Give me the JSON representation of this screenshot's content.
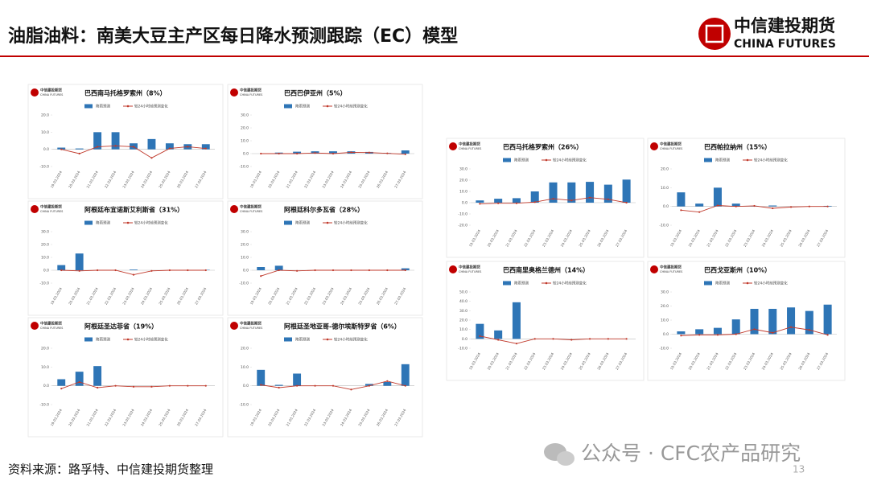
{
  "header": {
    "title": "油脂油料：南美大豆主产区每日降水预测跟踪（EC）模型",
    "logo_cn": "中信建投期货",
    "logo_en": "CHINA FUTURES"
  },
  "footer": {
    "source": "资料来源：路孚特、中信建投期货整理",
    "page": "13"
  },
  "watermark": "公众号 · CFC农产品研究",
  "chart_data": [
    {
      "type": "bar",
      "title": "巴西南马托格罗索州（8%）",
      "categories": [
        "19.03.2024",
        "20.03.2024",
        "21.03.2024",
        "22.03.2024",
        "23.03.2024",
        "24.03.2024",
        "25.03.2024",
        "26.03.2024",
        "27.03.2024"
      ],
      "series": [
        {
          "name": "降雨预测",
          "color": "#2e75b6",
          "values": [
            1,
            0.5,
            10,
            10,
            3.5,
            6,
            3.5,
            3,
            3
          ]
        },
        {
          "name": "较24小时前预测变化",
          "color": "#c0392b",
          "type": "line",
          "values": [
            0,
            -2.5,
            1.5,
            2,
            1.5,
            -5,
            0.5,
            1.5,
            0.5
          ]
        }
      ],
      "ylim": [
        -10,
        20
      ],
      "yticks": [
        {
          "value": -10,
          "label": "-10.0"
        },
        {
          "value": 0,
          "label": "0.0"
        },
        {
          "value": 10,
          "label": "10.0"
        },
        {
          "value": 20,
          "label": "20.0"
        }
      ]
    },
    {
      "type": "bar",
      "title": "巴西巴伊亚州（5%）",
      "categories": [
        "19.03.2024",
        "20.03.2024",
        "21.03.2024",
        "22.03.2024",
        "23.03.2024",
        "24.03.2024",
        "25.03.2024",
        "26.03.2024",
        "27.03.2024"
      ],
      "series": [
        {
          "name": "降雨预测",
          "color": "#2e75b6",
          "values": [
            0,
            0.8,
            1.5,
            1.8,
            1.8,
            1.8,
            1.3,
            0.5,
            2.5
          ]
        },
        {
          "name": "较24小时前预测变化",
          "color": "#c0392b",
          "type": "line",
          "values": [
            0,
            0,
            0,
            0.5,
            0,
            1,
            0.8,
            0.2,
            -0.5
          ]
        }
      ],
      "ylim": [
        -10,
        30
      ],
      "yticks": [
        {
          "value": -10,
          "label": "-10.0"
        },
        {
          "value": 0,
          "label": "0.0"
        },
        {
          "value": 10,
          "label": "10.0"
        },
        {
          "value": 20,
          "label": "20.0"
        },
        {
          "value": 30,
          "label": "30.0"
        }
      ]
    },
    {
      "type": "bar",
      "title": "阿根廷布宜诺斯艾利斯省（31%）",
      "categories": [
        "19.03.2024",
        "20.03.2024",
        "21.03.2024",
        "22.03.2024",
        "23.03.2024",
        "24.03.2024",
        "25.03.2024",
        "26.03.2024",
        "27.03.2024"
      ],
      "series": [
        {
          "name": "降雨预测",
          "color": "#2e75b6",
          "values": [
            4,
            13,
            0,
            0,
            0.5,
            0,
            0,
            0,
            0.3
          ]
        },
        {
          "name": "较24小时前预测变化",
          "color": "#c0392b",
          "type": "line",
          "values": [
            0,
            -0.5,
            0,
            0,
            -3.5,
            -0.5,
            0,
            0,
            0
          ]
        }
      ],
      "ylim": [
        -10,
        30
      ],
      "yticks": [
        {
          "value": -10,
          "label": "-10.0"
        },
        {
          "value": 0,
          "label": "0.0"
        },
        {
          "value": 10,
          "label": "10.0"
        },
        {
          "value": 20,
          "label": "20.0"
        },
        {
          "value": 30,
          "label": "30.0"
        }
      ]
    },
    {
      "type": "bar",
      "title": "阿根廷科尔多瓦省（28%）",
      "categories": [
        "19.03.2024",
        "20.03.2024",
        "21.03.2024",
        "22.03.2024",
        "23.03.2024",
        "24.03.2024",
        "25.03.2024",
        "26.03.2024",
        "27.03.2024"
      ],
      "series": [
        {
          "name": "降雨预测",
          "color": "#2e75b6",
          "values": [
            2.5,
            3.5,
            0,
            0,
            0,
            0,
            0,
            0,
            1.5
          ]
        },
        {
          "name": "较24小时前预测变化",
          "color": "#c0392b",
          "type": "line",
          "values": [
            -4.5,
            0,
            -0.5,
            0,
            0,
            0,
            0,
            0,
            0
          ]
        }
      ],
      "ylim": [
        -10,
        30
      ],
      "yticks": [
        {
          "value": -10,
          "label": "-10.0"
        },
        {
          "value": 0,
          "label": "0.0"
        },
        {
          "value": 10,
          "label": "10.0"
        },
        {
          "value": 20,
          "label": "20.0"
        },
        {
          "value": 30,
          "label": "30.0"
        }
      ]
    },
    {
      "type": "bar",
      "title": "阿根廷圣达菲省（19%）",
      "categories": [
        "19.03.2024",
        "20.03.2024",
        "21.03.2024",
        "22.03.2024",
        "23.03.2024",
        "24.03.2024",
        "25.03.2024",
        "26.03.2024",
        "27.03.2024"
      ],
      "series": [
        {
          "name": "降雨预测",
          "color": "#2e75b6",
          "values": [
            3.5,
            7.5,
            10.5,
            0,
            0,
            0,
            0,
            0,
            0
          ]
        },
        {
          "name": "较24小时前预测变化",
          "color": "#c0392b",
          "type": "line",
          "values": [
            -1.5,
            2,
            -1,
            0,
            -0.5,
            -0.5,
            0,
            0,
            0
          ]
        }
      ],
      "ylim": [
        -10,
        20
      ],
      "yticks": [
        {
          "value": -10,
          "label": "-10.0"
        },
        {
          "value": 0,
          "label": "0.0"
        },
        {
          "value": 10,
          "label": "10.0"
        },
        {
          "value": 20,
          "label": "20.0"
        }
      ]
    },
    {
      "type": "bar",
      "title": "阿根廷圣地亚哥-德尔埃斯特罗省（6%）",
      "categories": [
        "19.03.2024",
        "20.03.2024",
        "21.03.2024",
        "22.03.2024",
        "23.03.2024",
        "24.03.2024",
        "25.03.2024",
        "26.03.2024",
        "27.03.2024"
      ],
      "series": [
        {
          "name": "降雨预测",
          "color": "#2e75b6",
          "values": [
            8.5,
            0.5,
            6.5,
            0,
            0,
            0,
            1,
            2,
            11.5
          ]
        },
        {
          "name": "较24小时前预测变化",
          "color": "#c0392b",
          "type": "line",
          "values": [
            0.5,
            -1,
            0,
            0,
            0,
            -2,
            0,
            2.5,
            0
          ]
        }
      ],
      "ylim": [
        -10,
        20
      ],
      "yticks": [
        {
          "value": -10,
          "label": "-10.0"
        },
        {
          "value": 0,
          "label": "0.0"
        },
        {
          "value": 10,
          "label": "10.0"
        },
        {
          "value": 20,
          "label": "20.0"
        }
      ]
    },
    {
      "type": "bar",
      "title": "巴西马托格罗索州（26%）",
      "categories": [
        "19.03.2024",
        "20.03.2024",
        "21.03.2024",
        "22.03.2024",
        "23.03.2024",
        "24.03.2024",
        "25.03.2024",
        "26.03.2024",
        "27.03.2024"
      ],
      "series": [
        {
          "name": "降雨预测",
          "color": "#2e75b6",
          "values": [
            2,
            3.5,
            4,
            10,
            18,
            18,
            18.5,
            16,
            20.5
          ]
        },
        {
          "name": "较24小时前预测变化",
          "color": "#c0392b",
          "type": "line",
          "values": [
            -1,
            -0.5,
            -0.5,
            0.5,
            3.5,
            2,
            4.5,
            3,
            0
          ]
        }
      ],
      "ylim": [
        -20,
        30
      ],
      "yticks": [
        {
          "value": -20,
          "label": "-20.0"
        },
        {
          "value": -10,
          "label": "-10.0"
        },
        {
          "value": 0,
          "label": "0.0"
        },
        {
          "value": 10,
          "label": "10.0"
        },
        {
          "value": 20,
          "label": "20.0"
        },
        {
          "value": 30,
          "label": "30.0"
        }
      ]
    },
    {
      "type": "bar",
      "title": "巴西帕拉纳州（15%）",
      "categories": [
        "19.03.2024",
        "20.03.2024",
        "21.03.2024",
        "22.03.2024",
        "23.03.2024",
        "24.03.2024",
        "25.03.2024",
        "26.03.2024",
        "27.03.2024"
      ],
      "series": [
        {
          "name": "降雨预测",
          "color": "#2e75b6",
          "values": [
            7.5,
            1.5,
            10,
            1.5,
            0.3,
            0.5,
            0,
            0,
            0.3
          ]
        },
        {
          "name": "较24小时前预测变化",
          "color": "#c0392b",
          "type": "line",
          "values": [
            -2,
            -3,
            0.5,
            0,
            0.3,
            -1,
            -0.3,
            0,
            0
          ]
        }
      ],
      "ylim": [
        -10,
        20
      ],
      "yticks": [
        {
          "value": -10,
          "label": "-10.0"
        },
        {
          "value": 0,
          "label": "0.0"
        },
        {
          "value": 10,
          "label": "10.0"
        },
        {
          "value": 20,
          "label": "20.0"
        }
      ]
    },
    {
      "type": "bar",
      "title": "巴西南里奥格兰德州（14%）",
      "categories": [
        "19.03.2024",
        "20.03.2024",
        "21.03.2024",
        "22.03.2024",
        "23.03.2024",
        "24.03.2024",
        "25.03.2024",
        "26.03.2024",
        "27.03.2024"
      ],
      "series": [
        {
          "name": "降雨预测",
          "color": "#2e75b6",
          "values": [
            16,
            9,
            39,
            0,
            0,
            0,
            0,
            0,
            0
          ]
        },
        {
          "name": "较24小时前预测变化",
          "color": "#c0392b",
          "type": "line",
          "values": [
            3,
            -1,
            -5,
            0,
            0,
            -1,
            0,
            0,
            0
          ]
        }
      ],
      "ylim": [
        -10,
        50
      ],
      "yticks": [
        {
          "value": -10,
          "label": "-10.0"
        },
        {
          "value": 0,
          "label": "0.0"
        },
        {
          "value": 10,
          "label": "10.0"
        },
        {
          "value": 20,
          "label": "20.0"
        },
        {
          "value": 30,
          "label": "30.0"
        },
        {
          "value": 40,
          "label": "40.0"
        },
        {
          "value": 50,
          "label": "50.0"
        }
      ]
    },
    {
      "type": "bar",
      "title": "巴西戈亚斯州（10%）",
      "categories": [
        "19.03.2024",
        "20.03.2024",
        "21.03.2024",
        "22.03.2024",
        "23.03.2024",
        "24.03.2024",
        "25.03.2024",
        "26.03.2024",
        "27.03.2024"
      ],
      "series": [
        {
          "name": "降雨预测",
          "color": "#2e75b6",
          "values": [
            2,
            3.5,
            4.5,
            10.5,
            18,
            18,
            19,
            16.5,
            21
          ]
        },
        {
          "name": "较24小时前预测变化",
          "color": "#c0392b",
          "type": "line",
          "values": [
            -1,
            -0.5,
            -0.5,
            0,
            3.5,
            1,
            5,
            3,
            -0.5
          ]
        }
      ],
      "ylim": [
        -10,
        30
      ],
      "yticks": [
        {
          "value": -10,
          "label": "-10.0"
        },
        {
          "value": 0,
          "label": "0.0"
        },
        {
          "value": 10,
          "label": "10.0"
        },
        {
          "value": 20,
          "label": "20.0"
        },
        {
          "value": 30,
          "label": "30.0"
        }
      ]
    }
  ]
}
